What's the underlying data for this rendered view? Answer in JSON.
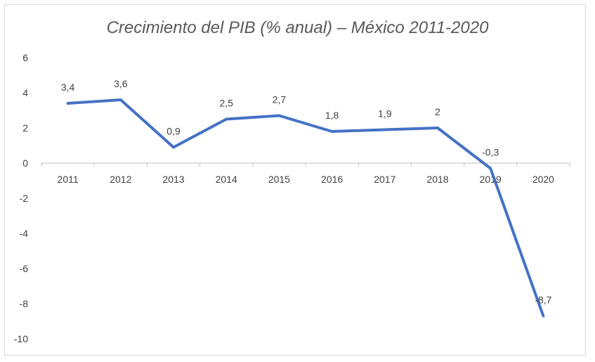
{
  "chart_data": {
    "type": "line",
    "title": "Crecimiento del PIB (% anual) – México 2011-2020",
    "xlabel": "",
    "ylabel": "",
    "categories": [
      "2011",
      "2012",
      "2013",
      "2014",
      "2015",
      "2016",
      "2017",
      "2018",
      "2019",
      "2020"
    ],
    "series": [
      {
        "values": [
          3.4,
          3.6,
          0.9,
          2.5,
          2.7,
          1.8,
          1.9,
          2.0,
          -0.3,
          -8.7
        ],
        "data_labels": [
          "3,4",
          "3,6",
          "0,9",
          "2,5",
          "2,7",
          "1,8",
          "1,9",
          "2",
          "-0,3",
          "-8,7"
        ],
        "color": "#4472c4"
      }
    ],
    "ylim": [
      -10,
      6
    ],
    "yticks": [
      6,
      4,
      2,
      0,
      -2,
      -4,
      -6,
      -8,
      -10
    ],
    "grid": false,
    "legend": "none",
    "colors": {
      "line": "#4472c4",
      "axis": "#bfbfbf",
      "text": "#404040",
      "title": "#595959"
    }
  }
}
